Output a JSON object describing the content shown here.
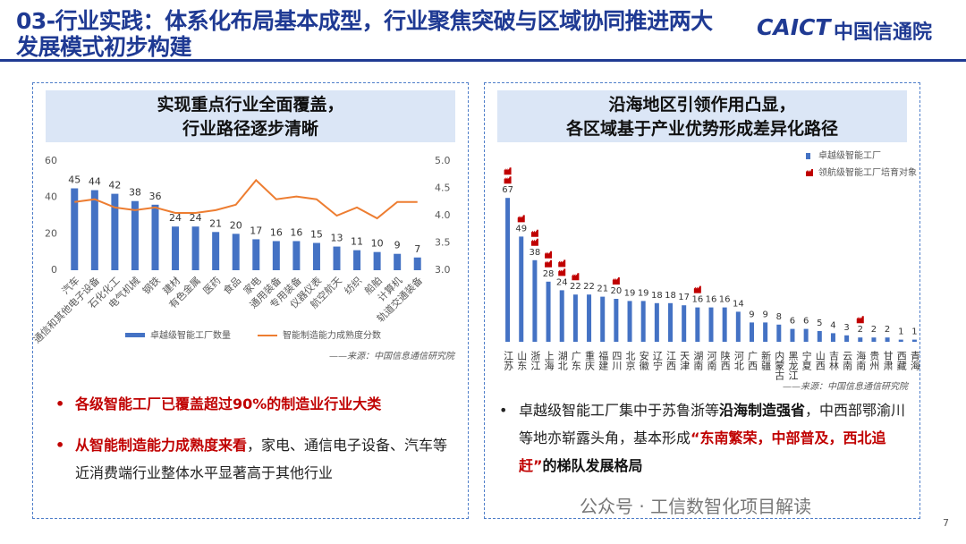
{
  "header": {
    "title": [
      "03-行业实践：体系化布局基本成型，行业聚焦突破与区域协同推进两大",
      "发展模式初步构建"
    ],
    "logo": "CAICT",
    "org": "中国信通院"
  },
  "panels": [
    {
      "title": [
        "实现重点行业全面覆盖，",
        "行业路径逐步清晰"
      ],
      "bullets": [
        [
          {
            "text": "各级智能工厂已覆盖超过90%的制造业行业大类",
            "style": "red"
          }
        ],
        [
          {
            "text": "从智能制造能力成熟度来看",
            "style": "red"
          },
          {
            "text": "，家电、通信电子设备、汽车等近消费端行业整体水平显著高于其他行业",
            "style": "normal"
          }
        ]
      ]
    },
    {
      "title": [
        "沿海地区引领作用凸显，",
        "各区域基于产业优势形成差异化路径"
      ],
      "bullets": [
        [
          {
            "text": "卓越级智能工厂集中于苏鲁浙等",
            "style": "normal"
          },
          {
            "text": "沿海制造强省",
            "style": "bold"
          },
          {
            "text": "，中西部鄂渝川等地亦崭露头角，基本形成",
            "style": "normal"
          },
          {
            "text": "“东南繁荣，中部普及，西北追赶”",
            "style": "red"
          },
          {
            "text": "的梯队发展格局",
            "style": "bold"
          }
        ]
      ]
    }
  ],
  "chart_data": [
    {
      "type": "bar",
      "categories": [
        "汽车",
        "通信和其他电子设备",
        "石化化工",
        "电气机械",
        "钢铁",
        "建材",
        "有色金属",
        "医药",
        "食品",
        "家电",
        "通用装备",
        "专用装备",
        "仪器仪表",
        "航空航天",
        "纺织",
        "船舶",
        "计算机",
        "轨道交通装备"
      ],
      "series": [
        {
          "name": "卓越级智能工厂数量",
          "type": "bar",
          "color": "#4472c4",
          "values": [
            45,
            44,
            42,
            38,
            36,
            24,
            24,
            21,
            20,
            17,
            16,
            16,
            15,
            13,
            11,
            10,
            9,
            7
          ]
        },
        {
          "name": "智能制造能力成熟度分数",
          "type": "line",
          "axis": "y2",
          "color": "#ed7d31",
          "values": [
            4.25,
            4.3,
            4.15,
            4.1,
            4.15,
            4.05,
            4.05,
            4.1,
            4.2,
            4.65,
            4.3,
            4.35,
            4.3,
            4.0,
            4.15,
            3.95,
            4.25,
            4.25
          ]
        }
      ],
      "ylim": [
        0,
        60
      ],
      "yticks": [
        0,
        20,
        40,
        60
      ],
      "y2lim": [
        3,
        5
      ],
      "y2ticks": [
        {
          "value": 3,
          "label": "3.0"
        },
        3.5,
        {
          "value": 4,
          "label": "4.0"
        },
        4.5,
        {
          "value": 5,
          "label": "5.0"
        }
      ],
      "data_labels": true,
      "legend": "bottom",
      "source": "——来源：中国信息通信研究院"
    },
    {
      "type": "bar",
      "categories": [
        "江苏",
        "山东",
        "浙江",
        "上海",
        "湖北",
        "广东",
        "重庆",
        "福建",
        "四川",
        "北京",
        "安徽",
        "辽宁",
        "江西",
        "天津",
        "湖南",
        "河南",
        "陕西",
        "河北",
        "广西",
        "新疆",
        "内蒙古",
        "黑龙江",
        "宁夏",
        "山西",
        "吉林",
        "云南",
        "海南",
        "贵州",
        "甘肃",
        "西藏",
        "青海"
      ],
      "series": [
        {
          "name": "卓越级智能工厂",
          "type": "bar",
          "color": "#4472c4",
          "values": [
            67,
            49,
            38,
            28,
            24,
            22,
            22,
            21,
            20,
            19,
            19,
            18,
            18,
            17,
            16,
            16,
            16,
            14,
            9,
            9,
            8,
            6,
            6,
            5,
            4,
            3,
            2,
            2,
            2,
            1,
            1
          ]
        },
        {
          "name": "领航级智能工厂培育对象",
          "type": "icon",
          "color": "#c00000",
          "values": [
            2,
            1,
            2,
            2,
            2,
            1,
            null,
            null,
            1,
            null,
            null,
            null,
            null,
            null,
            1,
            null,
            null,
            null,
            null,
            null,
            null,
            null,
            null,
            null,
            null,
            null,
            1,
            null,
            null,
            null,
            null
          ]
        }
      ],
      "ylim": [
        0,
        70
      ],
      "data_labels": true,
      "legend": "top-right",
      "source": "——来源：中国信息通信研究院"
    }
  ],
  "footer": {
    "watermark": "公众号 · 工信数智化项目解读",
    "page": 7
  }
}
